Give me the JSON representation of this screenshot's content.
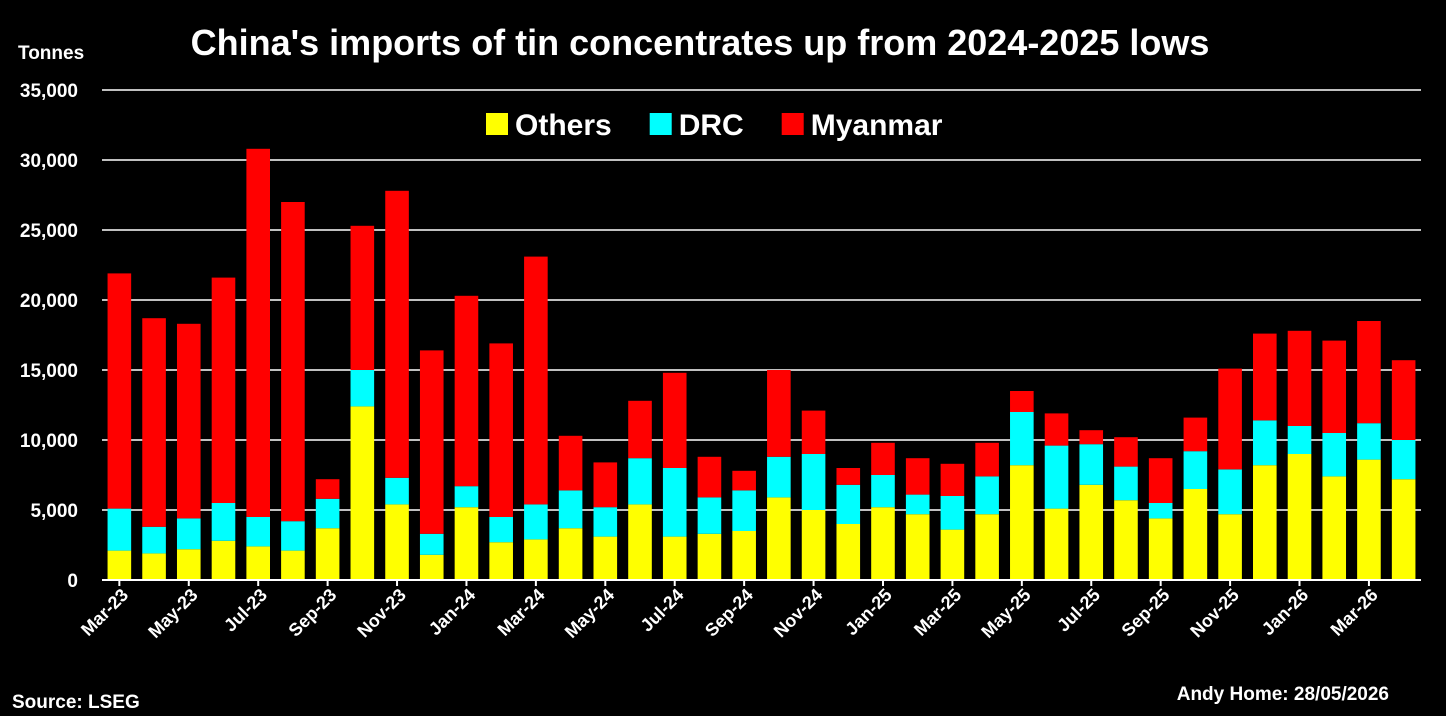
{
  "chart_data": {
    "type": "bar",
    "stacked": true,
    "title": "China's imports of tin concentrates up from 2024-2025 lows",
    "ylabel": "Tonnes",
    "ylim": [
      0,
      35000
    ],
    "yticks": [
      "0",
      "5,000",
      "10,000",
      "15,000",
      "20,000",
      "25,000",
      "30,000",
      "35,000"
    ],
    "grid": true,
    "legend_position": "top-center",
    "categories": [
      "Mar-23",
      "Apr-23",
      "May-23",
      "Jun-23",
      "Jul-23",
      "Aug-23",
      "Sep-23",
      "Oct-23",
      "Nov-23",
      "Dec-23",
      "Jan-24",
      "Feb-24",
      "Mar-24",
      "Apr-24",
      "May-24",
      "Jun-24",
      "Jul-24",
      "Aug-24",
      "Sep-24",
      "Oct-24",
      "Nov-24",
      "Dec-24",
      "Jan-25",
      "Feb-25",
      "Mar-25",
      "Apr-25",
      "May-25",
      "Jun-25",
      "Jul-25",
      "Aug-25",
      "Sep-25",
      "Oct-25",
      "Nov-25",
      "Dec-25",
      "Jan-26",
      "Feb-26",
      "Mar-26",
      "Apr-26"
    ],
    "xtick_labels": [
      "Mar-23",
      "May-23",
      "Jul-23",
      "Sep-23",
      "Nov-23",
      "Jan-24",
      "Mar-24",
      "May-24",
      "Jul-24",
      "Sep-24",
      "Nov-24",
      "Jan-25",
      "Mar-25",
      "May-25",
      "Jul-25",
      "Sep-25",
      "Nov-25",
      "Jan-26",
      "Mar-26"
    ],
    "series": [
      {
        "name": "Others",
        "color": "#ffff00",
        "values": [
          2100,
          1900,
          2200,
          2800,
          2400,
          2100,
          3700,
          12400,
          5400,
          1800,
          5200,
          2700,
          2900,
          3700,
          3100,
          5400,
          3100,
          3300,
          3500,
          5900,
          5000,
          4000,
          5200,
          4700,
          3600,
          4700,
          8200,
          5100,
          6800,
          5700,
          4400,
          6500,
          4700,
          8200,
          9000,
          7400,
          8600,
          7200
        ]
      },
      {
        "name": "DRC",
        "color": "#00ffff",
        "values": [
          3000,
          1900,
          2200,
          2700,
          2100,
          2100,
          2100,
          2600,
          1900,
          1500,
          1500,
          1800,
          2500,
          2700,
          2100,
          3300,
          4900,
          2600,
          2900,
          2900,
          4000,
          2800,
          2300,
          1400,
          2400,
          2700,
          3800,
          4500,
          2900,
          2400,
          1100,
          2700,
          3200,
          3200,
          2000,
          3100,
          2600,
          2800
        ]
      },
      {
        "name": "Myanmar",
        "color": "#ff0000",
        "values": [
          16800,
          14900,
          13900,
          16100,
          26300,
          22800,
          1400,
          10300,
          20500,
          13100,
          13600,
          12400,
          17700,
          3900,
          3200,
          4100,
          6800,
          2900,
          1400,
          6200,
          3100,
          1200,
          2300,
          2600,
          2300,
          2400,
          1500,
          2300,
          1000,
          2100,
          3200,
          2400,
          7200,
          6200,
          6800,
          6600,
          7300,
          5700
        ]
      }
    ]
  },
  "footer": {
    "source": "Source: LSEG",
    "credit": "Andy Home: 28/05/2026"
  }
}
